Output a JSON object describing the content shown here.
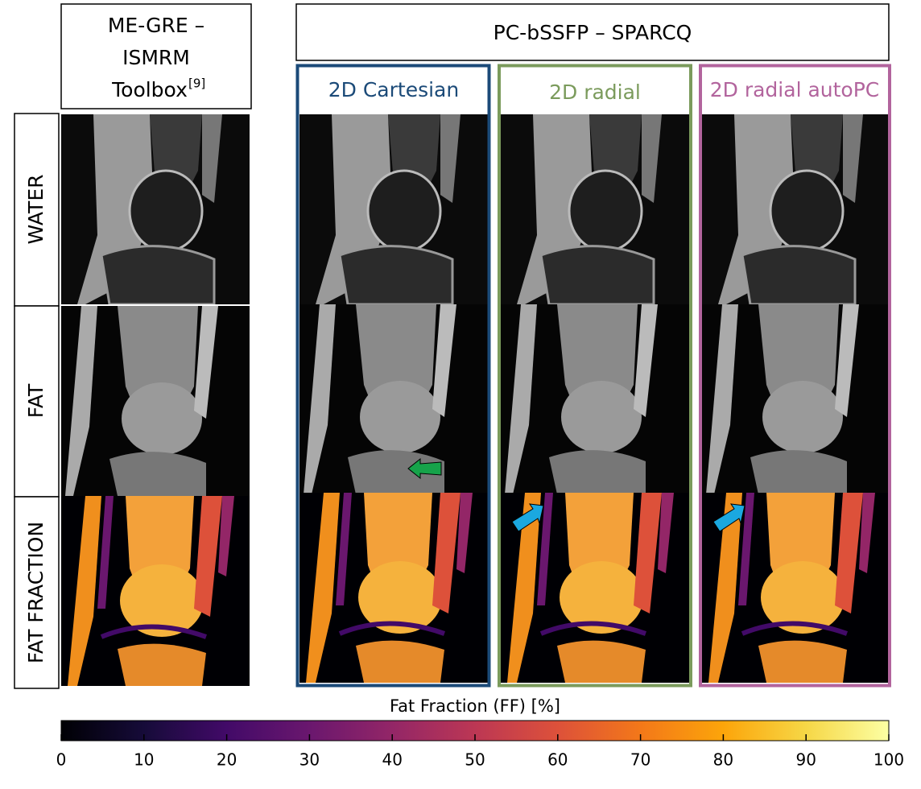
{
  "header": {
    "left_title": {
      "lines": [
        "ME-GRE –",
        "ISMRM",
        "Toolbox"
      ],
      "superscript": "[9]"
    },
    "right_title": "PC-bSSFP – SPARCQ"
  },
  "columns": [
    "2D Cartesian",
    "2D radial",
    "2D radial autoPC"
  ],
  "rows": [
    "WATER",
    "FAT",
    "FAT FRACTION"
  ],
  "colorbar": {
    "label": "Fat Fraction (FF) [%]",
    "range": [
      0,
      100
    ],
    "ticks": [
      0,
      10,
      20,
      30,
      40,
      50,
      60,
      70,
      80,
      90,
      100
    ]
  }
}
